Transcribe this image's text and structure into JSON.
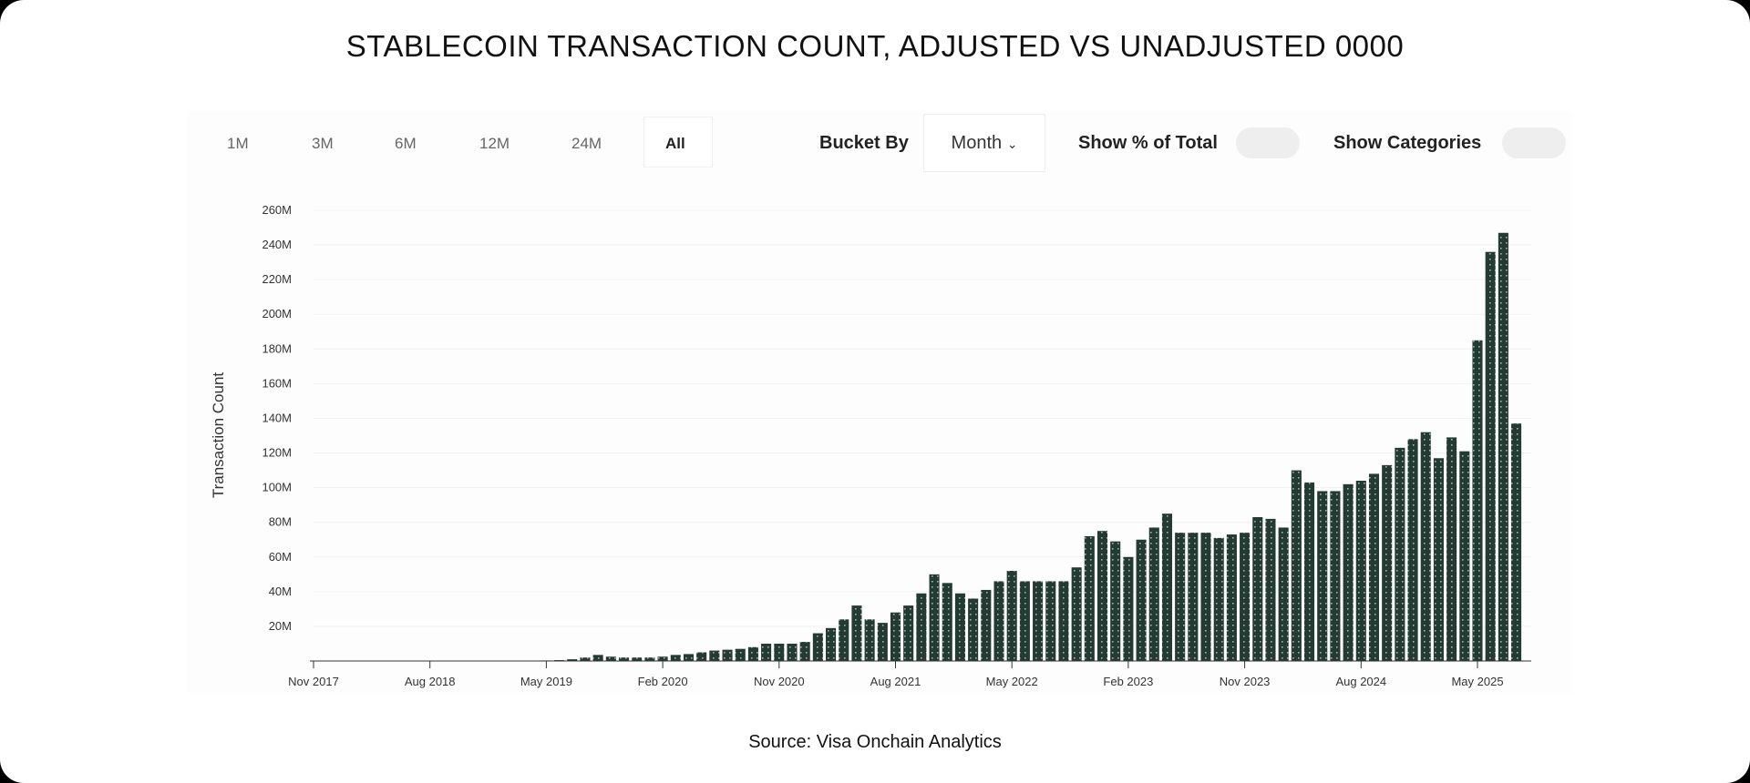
{
  "title": "STABLECOIN TRANSACTION COUNT, ADJUSTED VS UNADJUSTED 0000",
  "source": "Source: Visa Onchain Analytics",
  "controls": {
    "ranges": [
      "1M",
      "3M",
      "6M",
      "12M",
      "24M",
      "All"
    ],
    "active_range": "All",
    "bucket_label": "Bucket By",
    "bucket_value": "Month",
    "show_pct_label": "Show % of Total",
    "show_pct_on": false,
    "show_categories_label": "Show Categories",
    "show_categories_on": false
  },
  "colors": {
    "bar": "#243b33"
  },
  "chart_data": {
    "type": "bar",
    "title": "",
    "xlabel": "",
    "ylabel": "Transaction Count",
    "ylim": [
      0,
      260000000
    ],
    "yticks": [
      "20M",
      "40M",
      "60M",
      "80M",
      "100M",
      "120M",
      "140M",
      "160M",
      "180M",
      "200M",
      "220M",
      "240M",
      "260M"
    ],
    "xticks": [
      "Nov 2017",
      "Aug 2018",
      "May 2019",
      "Feb 2020",
      "Nov 2020",
      "Aug 2021",
      "May 2022",
      "Feb 2023",
      "Nov 2023",
      "Aug 2024",
      "May 2025"
    ],
    "grid": true,
    "start_month": "Nov 2017",
    "unit": "M",
    "values": [
      0,
      0,
      0,
      0,
      0,
      0,
      0,
      0,
      0,
      0,
      0,
      0,
      0,
      0,
      0,
      0,
      0,
      0,
      0.3,
      0.5,
      1,
      2,
      3.5,
      2.5,
      2,
      2,
      2,
      2.5,
      3.5,
      4,
      5,
      6,
      6.5,
      7,
      8,
      10,
      10,
      10,
      11,
      16,
      19,
      24,
      32,
      24,
      22,
      28,
      32,
      39,
      50,
      45,
      39,
      36,
      41,
      46,
      52,
      46,
      46,
      46,
      46,
      54,
      72,
      75,
      69,
      60,
      70,
      77,
      85,
      74,
      74,
      74,
      71,
      73,
      74,
      83,
      82,
      77,
      110,
      103,
      98,
      98,
      102,
      104,
      108,
      113,
      123,
      128,
      132,
      117,
      129,
      121,
      185,
      236,
      247,
      137
    ]
  }
}
